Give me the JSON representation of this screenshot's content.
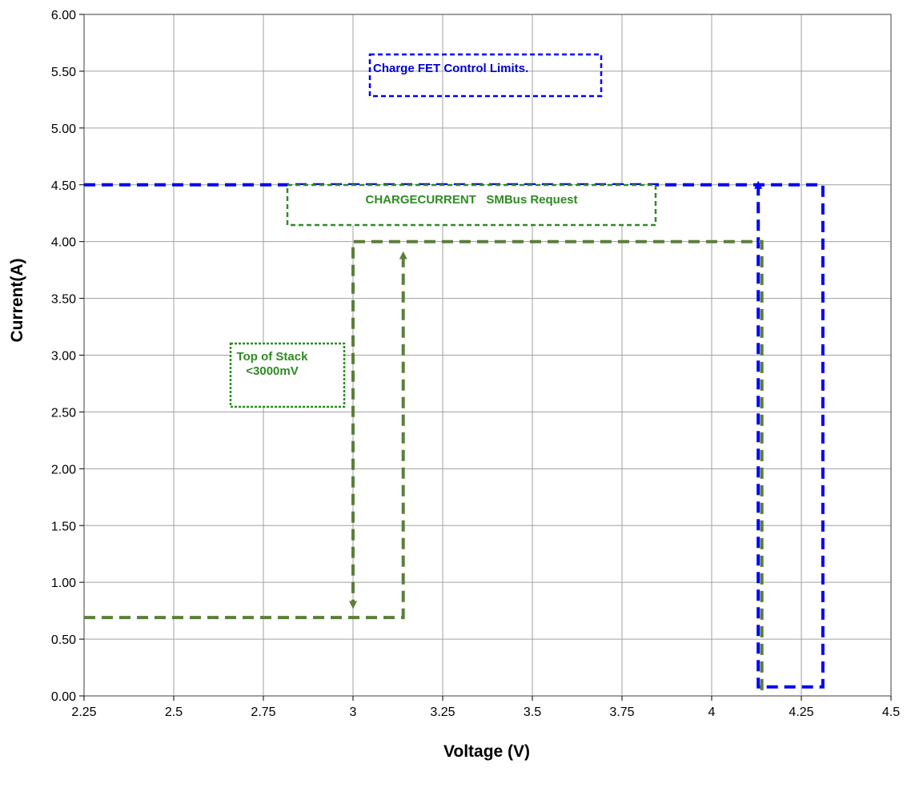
{
  "chart_data": {
    "type": "line",
    "xlabel": "Voltage (V)",
    "ylabel": "Current(A)",
    "xlim": [
      2.25,
      4.5
    ],
    "ylim": [
      0,
      6
    ],
    "x_ticks": [
      "2.25",
      "2.5",
      "2.75",
      "3",
      "3.25",
      "3.5",
      "3.75",
      "4",
      "4.25",
      "4.5"
    ],
    "y_ticks": [
      "0.00",
      "0.50",
      "1.00",
      "1.50",
      "2.00",
      "2.50",
      "3.00",
      "3.50",
      "4.00",
      "4.50",
      "5.00",
      "5.50",
      "6.00"
    ],
    "grid": true,
    "legend": "none",
    "series": [
      {
        "color": "#0000ff",
        "style": "dashed",
        "points": [
          [
            2.25,
            4.5
          ],
          [
            4.31,
            4.5
          ],
          [
            4.31,
            0.08
          ],
          [
            4.13,
            0.08
          ],
          [
            4.13,
            4.5
          ]
        ]
      },
      {
        "color": "#5a7f3a",
        "style": "dashed",
        "points": [
          [
            2.25,
            0.69
          ],
          [
            3.14,
            0.69
          ],
          [
            3.14,
            3.88
          ]
        ]
      },
      {
        "color": "#5a7f3a",
        "style": "dashed",
        "points": [
          [
            4.14,
            0.05
          ],
          [
            4.14,
            4.0
          ],
          [
            3.0,
            4.0
          ],
          [
            3.0,
            0.8
          ]
        ]
      }
    ],
    "annotations": [
      {
        "text": "Charge FET Control Limits.",
        "color": "#0000cc",
        "border": "#0000ff"
      },
      {
        "text": "CHARGECURRENT   SMBus Request",
        "color": "#2e8b22",
        "border": "#2e8b22"
      },
      {
        "lines": [
          "Top of Stack",
          "<3000mV"
        ],
        "color": "#2e8b22",
        "border": "#2e8b22"
      }
    ]
  }
}
